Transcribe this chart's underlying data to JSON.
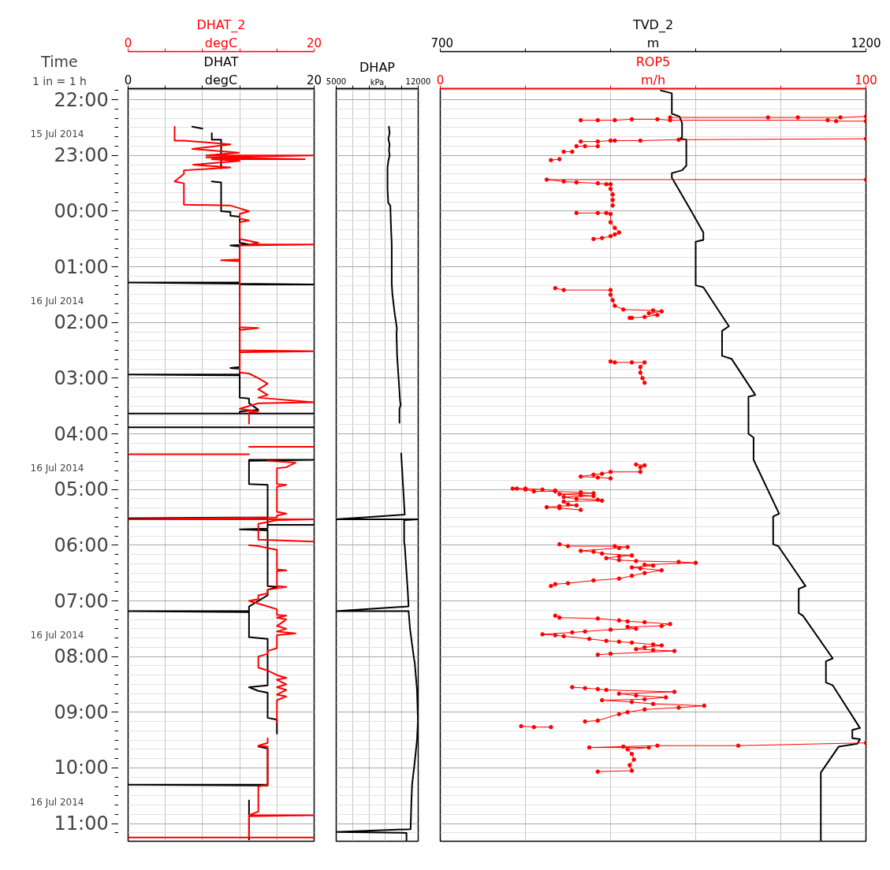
{
  "chart_data": [
    {
      "type": "line",
      "orientation": "horizontal",
      "annotations": [
        "Time",
        "1 in = 1 h"
      ],
      "xlim": [
        0,
        20
      ],
      "xticks": [
        0,
        {
          "value": 4,
          "label": null
        },
        {
          "value": 8,
          "label": null
        },
        {
          "value": 12,
          "label": null
        },
        {
          "value": 16,
          "label": null
        },
        20
      ],
      "xlabel": "degC",
      "x2lim": [
        0,
        20
      ],
      "x2ticks": [
        0,
        {
          "value": 4,
          "label": null
        },
        {
          "value": 8,
          "label": null
        },
        {
          "value": 12,
          "label": null
        },
        {
          "value": 16,
          "label": null
        },
        20
      ],
      "x2label": "degC",
      "ylim": [
        "2014-07-16T11:19",
        "2014-07-15T21:48"
      ],
      "yticks": [
        {
          "value": "2014-07-15T22:00",
          "label": "22:00"
        },
        {
          "value": "2014-07-15T23:00",
          "label": "23:00"
        },
        {
          "value": "2014-07-16T00:00",
          "label": "00:00"
        },
        {
          "value": "2014-07-16T01:00",
          "label": "01:00"
        },
        {
          "value": "2014-07-16T02:00",
          "label": "02:00"
        },
        {
          "value": "2014-07-16T03:00",
          "label": "03:00"
        },
        {
          "value": "2014-07-16T04:00",
          "label": "04:00"
        },
        {
          "value": "2014-07-16T05:00",
          "label": "05:00"
        },
        {
          "value": "2014-07-16T06:00",
          "label": "06:00"
        },
        {
          "value": "2014-07-16T07:00",
          "label": "07:00"
        },
        {
          "value": "2014-07-16T08:00",
          "label": "08:00"
        },
        {
          "value": "2014-07-16T09:00",
          "label": "09:00"
        },
        {
          "value": "2014-07-16T10:00",
          "label": "10:00"
        },
        {
          "value": "2014-07-16T11:00",
          "label": "11:00"
        }
      ],
      "y2lim": [
        "2014-07-16T11:19",
        "2014-07-15T21:48"
      ],
      "y2ticks": [
        {
          "value": "2014-07-15T22:37",
          "label": "15 Jul 2014"
        },
        {
          "value": "2014-07-16T01:37",
          "label": "16 Jul 2014"
        },
        {
          "value": "2014-07-16T04:37",
          "label": "16 Jul 2014"
        },
        {
          "value": "2014-07-16T07:37",
          "label": "16 Jul 2014"
        },
        {
          "value": "2014-07-16T10:37",
          "label": "16 Jul 2014"
        }
      ],
      "grid": true,
      "series": [
        {
          "name": "DHAT",
          "color": "#000000",
          "marker": "none",
          "values": [
            6.9,
            8,
            null,
            9,
            9,
            10,
            10,
            null,
            9,
            10,
            10,
            11,
            11,
            12,
            12,
            13,
            11,
            12,
            12,
            0,
            20,
            12,
            12,
            11,
            12,
            12,
            0,
            12,
            12,
            13,
            13,
            14,
            12,
            12,
            0,
            20,
            null,
            0,
            20,
            null,
            13,
            20,
            13,
            13,
            15,
            15,
            0,
            15,
            15,
            20,
            15,
            15,
            12,
            15,
            15,
            16,
            15,
            15,
            13,
            13,
            0,
            13,
            13,
            15,
            15,
            13,
            14,
            15,
            15,
            16,
            16,
            null,
            14,
            15,
            15,
            0,
            15,
            null,
            13,
            13
          ],
          "x": [
            "2014-07-15T22:29",
            "2014-07-15T22:31",
            null,
            "2014-07-15T22:36",
            "2014-07-15T22:43",
            "2014-07-15T22:43",
            "2014-07-15T23:14",
            null,
            "2014-07-15T23:28",
            "2014-07-15T23:29",
            "2014-07-16T00:00",
            "2014-07-16T00:01",
            "2014-07-16T00:05",
            "2014-07-16T00:06",
            "2014-07-16T00:34",
            "2014-07-16T00:36",
            "2014-07-16T00:37",
            "2014-07-16T00:38",
            "2014-07-16T01:17",
            "2014-07-16T01:17",
            "2014-07-16T01:19",
            "2014-07-16T01:19",
            "2014-07-16T02:48",
            "2014-07-16T02:49",
            "2014-07-16T02:50",
            "2014-07-16T02:56",
            "2014-07-16T02:56",
            "2014-07-16T02:57",
            "2014-07-16T03:21",
            "2014-07-16T03:22",
            "2014-07-16T03:27",
            "2014-07-16T03:34",
            "2014-07-16T03:36",
            "2014-07-16T03:38",
            "2014-07-16T03:38",
            "2014-07-16T03:38",
            null,
            "2014-07-16T03:53",
            "2014-07-16T03:53",
            null,
            "2014-07-16T04:28",
            "2014-07-16T04:28",
            "2014-07-16T04:29",
            "2014-07-16T04:54",
            "2014-07-16T04:55",
            "2014-07-16T05:30",
            "2014-07-16T05:31",
            "2014-07-16T05:31",
            "2014-07-16T05:38",
            "2014-07-16T05:38",
            "2014-07-16T05:38",
            "2014-07-16T05:42",
            "2014-07-16T05:43",
            "2014-07-16T05:44",
            "2014-07-16T06:44",
            "2014-07-16T06:45",
            "2014-07-16T06:48",
            "2014-07-16T06:54",
            "2014-07-16T07:06",
            "2014-07-16T07:11",
            "2014-07-16T07:11",
            "2014-07-16T07:12",
            "2014-07-16T07:39",
            "2014-07-16T07:41",
            "2014-07-16T08:31",
            "2014-07-16T08:33",
            "2014-07-16T08:37",
            "2014-07-16T08:39",
            "2014-07-16T09:06",
            "2014-07-16T09:08",
            "2014-07-16T09:23",
            null,
            "2014-07-16T09:37",
            "2014-07-16T09:39",
            "2014-07-16T10:18",
            "2014-07-16T10:18",
            "2014-07-16T10:19",
            null,
            "2014-07-16T10:35",
            "2014-07-16T11:17"
          ]
        },
        {
          "name": "DHAT_2",
          "color": "#ff0000",
          "axis": "x2",
          "marker": "none",
          "values": [
            5,
            5,
            6,
            11,
            6.9,
            11.9,
            8.4,
            20,
            8.4,
            19,
            9,
            12,
            7,
            11,
            6,
            6,
            5,
            6,
            6,
            11,
            12,
            13,
            12,
            12,
            13,
            12,
            12,
            14,
            13,
            20,
            12,
            12,
            10,
            12,
            12,
            14,
            12,
            12,
            20,
            12,
            12,
            13,
            14,
            15,
            14,
            15,
            14,
            20,
            14,
            12,
            14,
            13,
            13,
            null,
            13,
            20,
            null,
            0,
            13,
            null,
            15,
            18,
            17,
            16,
            16,
            17,
            16,
            16,
            17,
            16,
            16,
            0,
            20,
            16,
            14,
            14,
            20,
            null,
            13,
            14,
            16,
            16,
            17,
            16,
            16,
            17,
            15,
            15,
            14,
            14,
            13,
            14,
            15,
            16,
            16,
            17,
            16,
            17,
            16,
            17,
            16,
            18,
            16,
            16,
            15,
            15,
            14,
            14,
            15,
            16,
            17,
            16,
            17,
            16,
            17,
            16,
            17,
            16,
            16,
            null,
            15,
            15,
            14,
            15,
            15,
            14,
            14,
            13,
            20,
            13,
            13,
            0,
            20
          ],
          "x": [
            "2014-07-15T22:29",
            "2014-07-15T22:44",
            "2014-07-15T22:44",
            "2014-07-15T22:48",
            "2014-07-15T22:53",
            "2014-07-15T22:57",
            "2014-07-15T23:00",
            "2014-07-15T23:00",
            "2014-07-15T23:02",
            "2014-07-15T23:04",
            "2014-07-15T23:04",
            "2014-07-15T23:06",
            "2014-07-15T23:10",
            "2014-07-15T23:13",
            "2014-07-15T23:16",
            "2014-07-15T23:20",
            "2014-07-15T23:28",
            "2014-07-15T23:30",
            "2014-07-15T23:53",
            "2014-07-15T23:54",
            "2014-07-15T23:57",
            "2014-07-16T00:00",
            "2014-07-16T00:03",
            "2014-07-16T00:08",
            "2014-07-16T00:10",
            "2014-07-16T00:12",
            "2014-07-16T00:30",
            "2014-07-16T00:34",
            "2014-07-16T00:36",
            "2014-07-16T00:36",
            "2014-07-16T00:37",
            "2014-07-16T00:52",
            "2014-07-16T00:53",
            "2014-07-16T00:54",
            "2014-07-16T02:05",
            "2014-07-16T02:06",
            "2014-07-16T02:08",
            "2014-07-16T02:30",
            "2014-07-16T02:31",
            "2014-07-16T02:32",
            "2014-07-16T02:54",
            "2014-07-16T02:55",
            "2014-07-16T03:00",
            "2014-07-16T03:06",
            "2014-07-16T03:12",
            "2014-07-16T03:18",
            "2014-07-16T03:21",
            "2014-07-16T03:26",
            "2014-07-16T03:27",
            "2014-07-16T03:33",
            "2014-07-16T03:36",
            "2014-07-16T03:37",
            "2014-07-16T03:49",
            null,
            "2014-07-16T04:14",
            "2014-07-16T04:14",
            null,
            "2014-07-16T04:22",
            "2014-07-16T04:22",
            null,
            "2014-07-16T04:29",
            "2014-07-16T04:31",
            "2014-07-16T04:36",
            "2014-07-16T04:37",
            "2014-07-16T04:54",
            "2014-07-16T04:55",
            "2014-07-16T04:57",
            "2014-07-16T05:24",
            "2014-07-16T05:26",
            "2014-07-16T05:28",
            "2014-07-16T05:30",
            "2014-07-16T05:32",
            "2014-07-16T05:32",
            "2014-07-16T05:33",
            "2014-07-16T05:37",
            "2014-07-16T05:54",
            "2014-07-16T05:56",
            null,
            "2014-07-16T06:00",
            "2014-07-16T06:01",
            "2014-07-16T06:05",
            "2014-07-16T06:26",
            "2014-07-16T06:27",
            "2014-07-16T06:28",
            "2014-07-16T06:44",
            "2014-07-16T06:45",
            "2014-07-16T06:48",
            "2014-07-16T06:52",
            "2014-07-16T06:54",
            "2014-07-16T06:58",
            "2014-07-16T07:00",
            "2014-07-16T07:03",
            "2014-07-16T07:06",
            "2014-07-16T07:09",
            "2014-07-16T07:15",
            "2014-07-16T07:16",
            "2014-07-16T07:18",
            "2014-07-16T07:20",
            "2014-07-16T07:27",
            "2014-07-16T07:30",
            "2014-07-16T07:33",
            "2014-07-16T07:35",
            "2014-07-16T07:37",
            "2014-07-16T07:51",
            "2014-07-16T07:54",
            "2014-07-16T07:57",
            "2014-07-16T08:00",
            "2014-07-16T08:12",
            "2014-07-16T08:15",
            "2014-07-16T08:20",
            "2014-07-16T08:23",
            "2014-07-16T08:25",
            "2014-07-16T08:30",
            "2014-07-16T08:33",
            "2014-07-16T08:36",
            "2014-07-16T08:41",
            "2014-07-16T08:43",
            "2014-07-16T08:47",
            "2014-07-16T09:11",
            null,
            "2014-07-16T09:28",
            "2014-07-16T09:33",
            "2014-07-16T09:36",
            "2014-07-16T09:37",
            "2014-07-16T10:18",
            "2014-07-16T10:20",
            "2014-07-16T10:47",
            "2014-07-16T10:51",
            "2014-07-16T10:51",
            "2014-07-16T10:52",
            "2014-07-16T11:15",
            "2014-07-16T11:15",
            "2014-07-16T11:15"
          ]
        }
      ]
    },
    {
      "type": "line",
      "tick_labels": "x",
      "xlim": [
        5000,
        12000
      ],
      "xticks": [
        5000,
        {
          "value": 6400,
          "label": null
        },
        {
          "value": 7800,
          "label": null
        },
        {
          "value": 9200,
          "label": null
        },
        {
          "value": 10600,
          "label": null
        },
        12000
      ],
      "xlabel": "kPa",
      "orientation": "horizontal",
      "ylim": [
        "2014-07-16T11:19",
        "2014-07-15T21:48"
      ],
      "yticks": [
        "2014-07-15T22:00",
        "2014-07-15T23:00",
        "2014-07-16T00:00",
        "2014-07-16T01:00",
        "2014-07-16T02:00",
        "2014-07-16T03:00",
        "2014-07-16T04:00",
        "2014-07-16T05:00",
        "2014-07-16T06:00",
        "2014-07-16T07:00",
        "2014-07-16T08:00",
        "2014-07-16T09:00",
        "2014-07-16T10:00",
        "2014-07-16T11:00"
      ],
      "grid": true,
      "series": [
        {
          "name": "DHAP",
          "color": "#000000",
          "marker": "none",
          "values": [
            9500,
            9560,
            9450,
            9560,
            9500,
            9560,
            9450,
            9380,
            9380,
            9440,
            9620,
            9680,
            9740,
            9740,
            9800,
            10000,
            10180,
            10150,
            10200,
            10450,
            10500,
            10400,
            10400,
            null,
            10550,
            10600,
            10850,
            5000,
            12000,
            10800,
            10800,
            10850,
            11100,
            11180,
            5000,
            11180,
            11300,
            11650,
            11700,
            11900,
            11980,
            11900,
            11700,
            11480,
            11420,
            11350,
            5000,
            11000,
            11000
          ],
          "x": [
            "2014-07-15T22:29",
            "2014-07-15T22:36",
            "2014-07-15T22:42",
            "2014-07-15T22:48",
            "2014-07-15T22:54",
            "2014-07-15T23:00",
            "2014-07-15T23:06",
            "2014-07-15T23:13",
            "2014-07-15T23:36",
            "2014-07-15T23:51",
            "2014-07-15T23:54",
            "2014-07-16T00:18",
            "2014-07-16T00:36",
            "2014-07-16T01:18",
            "2014-07-16T01:30",
            "2014-07-16T01:51",
            "2014-07-16T02:06",
            "2014-07-16T02:12",
            "2014-07-16T02:36",
            "2014-07-16T03:24",
            "2014-07-16T03:29",
            "2014-07-16T03:33",
            "2014-07-16T03:48",
            null,
            "2014-07-16T04:21",
            "2014-07-16T04:33",
            "2014-07-16T05:27",
            "2014-07-16T05:32",
            "2014-07-16T05:32",
            "2014-07-16T05:33",
            "2014-07-16T05:57",
            "2014-07-16T06:00",
            "2014-07-16T06:48",
            "2014-07-16T07:06",
            "2014-07-16T07:11",
            "2014-07-16T07:11",
            "2014-07-16T07:30",
            "2014-07-16T08:03",
            "2014-07-16T08:06",
            "2014-07-16T08:36",
            "2014-07-16T09:09",
            "2014-07-16T09:30",
            "2014-07-16T09:54",
            "2014-07-16T10:18",
            "2014-07-16T10:36",
            "2014-07-16T11:06",
            "2014-07-16T11:09",
            "2014-07-16T11:10",
            "2014-07-16T11:18"
          ]
        }
      ]
    },
    {
      "type": "line",
      "tick_labels": "x",
      "xlim": [
        0,
        100
      ],
      "xticks": [
        0,
        {
          "value": 20,
          "label": null
        },
        {
          "value": 40,
          "label": null
        },
        {
          "value": 60,
          "label": null
        },
        {
          "value": 80,
          "label": null
        },
        100
      ],
      "xlabel": "m/h",
      "x2lim": [
        700,
        1200
      ],
      "x2ticks": [
        700,
        {
          "value": 800,
          "label": null
        },
        {
          "value": 900,
          "label": null
        },
        {
          "value": 1000,
          "label": null
        },
        {
          "value": 1100,
          "label": null
        },
        1200
      ],
      "x2label": "m",
      "orientation": "horizontal",
      "ylim": [
        "2014-07-16T11:19",
        "2014-07-15T21:48"
      ],
      "yticks": [
        "2014-07-15T22:00",
        "2014-07-15T23:00",
        "2014-07-16T00:00",
        "2014-07-16T01:00",
        "2014-07-16T02:00",
        "2014-07-16T03:00",
        "2014-07-16T04:00",
        "2014-07-16T05:00",
        "2014-07-16T06:00",
        "2014-07-16T07:00",
        "2014-07-16T08:00",
        "2014-07-16T09:00",
        "2014-07-16T10:00",
        "2014-07-16T11:00"
      ],
      "grid": true,
      "series": [
        {
          "name": "TVD_2",
          "color": "#000000",
          "axis": "x2",
          "marker": "none",
          "values": [
            959,
            972,
            972,
            981,
            984,
            984,
            982,
            989,
            989,
            984,
            972,
            972,
            993,
            1009,
            1009,
            1000,
            1000,
            1009,
            1039,
            1031,
            1031,
            1042,
            1070,
            1062,
            1062,
            1068,
            1068,
            1068,
            1098,
            1091,
            1091,
            1097,
            1129,
            1121,
            1121,
            1126,
            1161,
            1153,
            1153,
            1161,
            1193,
            1184,
            1184,
            1193,
            1190,
            1168,
            1147,
            1147
          ],
          "x": [
            "2014-07-15T21:50",
            "2014-07-15T21:53",
            "2014-07-15T22:15",
            "2014-07-15T22:18",
            "2014-07-15T22:25",
            "2014-07-15T22:40",
            "2014-07-15T22:42",
            "2014-07-15T22:43",
            "2014-07-15T23:11",
            "2014-07-15T23:16",
            "2014-07-15T23:19",
            "2014-07-15T23:24",
            "2014-07-15T23:57",
            "2014-07-16T00:23",
            "2014-07-16T00:31",
            "2014-07-16T00:33",
            "2014-07-16T01:20",
            "2014-07-16T01:22",
            "2014-07-16T02:04",
            "2014-07-16T02:09",
            "2014-07-16T02:36",
            "2014-07-16T02:39",
            "2014-07-16T03:18",
            "2014-07-16T03:20",
            "2014-07-16T04:00",
            "2014-07-16T04:04",
            "2014-07-16T04:27",
            "2014-07-16T04:28",
            "2014-07-16T05:26",
            "2014-07-16T05:29",
            "2014-07-16T05:59",
            "2014-07-16T06:01",
            "2014-07-16T06:44",
            "2014-07-16T06:47",
            "2014-07-16T07:13",
            "2014-07-16T07:16",
            "2014-07-16T08:02",
            "2014-07-16T08:05",
            "2014-07-16T08:28",
            "2014-07-16T08:31",
            "2014-07-16T09:17",
            "2014-07-16T09:19",
            "2014-07-16T09:28",
            "2014-07-16T09:29",
            "2014-07-16T09:34",
            "2014-07-16T09:37",
            "2014-07-16T10:05",
            "2014-07-16T11:18"
          ]
        },
        {
          "name": "ROP5",
          "color": "#ff0000",
          "marker": "circle",
          "values": [
            100,
            94,
            84,
            77,
            54,
            null,
            33,
            37,
            41,
            45,
            51,
            54,
            91,
            93,
            100,
            null,
            100,
            56,
            47,
            41,
            40,
            37,
            33,
            null,
            37,
            34,
            32,
            null,
            31,
            29,
            null,
            28,
            26,
            null,
            100,
            25,
            29,
            32,
            37,
            39,
            40,
            40,
            40.5,
            40.5,
            40.5,
            null,
            32,
            37,
            39,
            40,
            40,
            41,
            42,
            41,
            40,
            38,
            36,
            null,
            27,
            29,
            40,
            40,
            40.5,
            41,
            43,
            50,
            52,
            49,
            51,
            48,
            45,
            44.5,
            null,
            40,
            41,
            45,
            48,
            47,
            47,
            47.5,
            48,
            null,
            46,
            48,
            47,
            47,
            40,
            38,
            36,
            33,
            37,
            40,
            null,
            27,
            24,
            20,
            18,
            17,
            20,
            22,
            27,
            33,
            36,
            28,
            33,
            36,
            29,
            32,
            37,
            38,
            29,
            30,
            32,
            28,
            25,
            28,
            33,
            null,
            28,
            30,
            41,
            44,
            42,
            33,
            36,
            38,
            45,
            42,
            39,
            42,
            46,
            56,
            60,
            48,
            50,
            45,
            47,
            52,
            48,
            45,
            42,
            36,
            30,
            27,
            26,
            null,
            27,
            28,
            37,
            42,
            44,
            48,
            54,
            52,
            44,
            46,
            40,
            34,
            31,
            24,
            27,
            29,
            35,
            39,
            42,
            45,
            50,
            52,
            48,
            46,
            50,
            55,
            40,
            37,
            null,
            31,
            34,
            37,
            39,
            55,
            42,
            46,
            53,
            48,
            38,
            45,
            50,
            62,
            56,
            48,
            44,
            42,
            37,
            34,
            null,
            19,
            22,
            26,
            null,
            100,
            70,
            51,
            43,
            35,
            49,
            44,
            45,
            45.5,
            44.5,
            45,
            37
          ],
          "x": [
            "2014-07-15T22:18",
            "2014-07-15T22:19",
            "2014-07-15T22:19",
            "2014-07-15T22:19",
            "2014-07-15T22:19",
            null,
            "2014-07-15T22:22",
            "2014-07-15T22:22",
            "2014-07-15T22:22",
            "2014-07-15T22:21",
            "2014-07-15T22:21",
            "2014-07-15T22:22",
            "2014-07-15T22:22",
            "2014-07-15T22:23",
            "2014-07-15T22:23",
            null,
            "2014-07-15T22:42",
            "2014-07-15T22:43",
            "2014-07-15T22:44",
            "2014-07-15T22:44",
            "2014-07-15T22:44",
            "2014-07-15T22:45",
            "2014-07-15T22:45",
            null,
            "2014-07-15T22:50",
            "2014-07-15T22:50",
            "2014-07-15T22:50",
            null,
            "2014-07-15T22:56",
            "2014-07-15T22:56",
            null,
            "2014-07-15T23:04",
            "2014-07-15T23:05",
            null,
            "2014-07-15T23:26",
            "2014-07-15T23:26",
            "2014-07-15T23:28",
            "2014-07-15T23:29",
            "2014-07-15T23:30",
            "2014-07-15T23:31",
            "2014-07-15T23:31",
            "2014-07-15T23:36",
            "2014-07-15T23:42",
            "2014-07-15T23:48",
            "2014-07-15T23:54",
            null,
            "2014-07-16T00:02",
            "2014-07-16T00:02",
            "2014-07-16T00:02",
            "2014-07-16T00:03",
            "2014-07-16T00:12",
            "2014-07-16T00:18",
            "2014-07-16T00:23",
            "2014-07-16T00:25",
            "2014-07-16T00:27",
            "2014-07-16T00:29",
            "2014-07-16T00:30",
            null,
            "2014-07-16T01:23",
            "2014-07-16T01:25",
            "2014-07-16T01:25",
            "2014-07-16T01:30",
            "2014-07-16T01:36",
            "2014-07-16T01:42",
            "2014-07-16T01:46",
            "2014-07-16T01:47",
            "2014-07-16T01:48",
            "2014-07-16T01:50",
            "2014-07-16T01:52",
            "2014-07-16T01:54",
            "2014-07-16T01:55",
            "2014-07-16T01:55",
            null,
            "2014-07-16T02:42",
            "2014-07-16T02:43",
            "2014-07-16T02:43",
            "2014-07-16T02:43",
            "2014-07-16T02:48",
            "2014-07-16T02:54",
            "2014-07-16T03:00",
            "2014-07-16T03:05",
            null,
            "2014-07-16T04:33",
            "2014-07-16T04:34",
            "2014-07-16T04:36",
            "2014-07-16T04:41",
            "2014-07-16T04:41",
            "2014-07-16T04:43",
            "2014-07-16T04:44",
            "2014-07-16T04:46",
            "2014-07-16T04:47",
            "2014-07-16T04:48",
            null,
            "2014-07-16T05:01",
            "2014-07-16T05:00",
            "2014-07-16T04:59",
            "2014-07-16T04:59",
            "2014-07-16T04:59",
            "2014-07-16T05:00",
            "2014-07-16T05:02",
            "2014-07-16T05:02",
            "2014-07-16T05:03",
            "2014-07-16T05:04",
            "2014-07-16T05:05",
            "2014-07-16T05:06",
            "2014-07-16T05:07",
            "2014-07-16T05:08",
            "2014-07-16T05:10",
            "2014-07-16T05:11",
            "2014-07-16T05:12",
            "2014-07-16T05:13",
            "2014-07-16T05:16",
            "2014-07-16T05:17",
            "2014-07-16T05:18",
            "2014-07-16T05:19",
            "2014-07-16T05:20",
            "2014-07-16T05:22",
            null,
            "2014-07-16T05:59",
            "2014-07-16T06:01",
            "2014-07-16T06:01",
            "2014-07-16T06:02",
            "2014-07-16T06:03",
            "2014-07-16T06:06",
            "2014-07-16T06:07",
            "2014-07-16T06:09",
            "2014-07-16T06:11",
            "2014-07-16T06:12",
            "2014-07-16T06:14",
            "2014-07-16T06:16",
            "2014-07-16T06:17",
            "2014-07-16T06:18",
            "2014-07-16T06:19",
            "2014-07-16T06:21",
            "2014-07-16T06:22",
            "2014-07-16T06:24",
            "2014-07-16T06:25",
            "2014-07-16T06:27",
            "2014-07-16T06:30",
            "2014-07-16T06:33",
            "2014-07-16T06:36",
            "2014-07-16T06:38",
            "2014-07-16T06:41",
            "2014-07-16T06:42",
            "2014-07-16T06:44",
            null,
            "2014-07-16T07:16",
            "2014-07-16T07:18",
            "2014-07-16T07:19",
            "2014-07-16T07:21",
            "2014-07-16T07:22",
            "2014-07-16T07:23",
            "2014-07-16T07:25",
            "2014-07-16T07:27",
            "2014-07-16T07:28",
            "2014-07-16T07:30",
            "2014-07-16T07:31",
            "2014-07-16T07:33",
            "2014-07-16T07:34",
            "2014-07-16T07:36",
            "2014-07-16T07:37",
            "2014-07-16T07:38",
            "2014-07-16T07:41",
            "2014-07-16T07:43",
            "2014-07-16T07:44",
            "2014-07-16T07:45",
            "2014-07-16T07:47",
            "2014-07-16T07:48",
            "2014-07-16T07:50",
            "2014-07-16T07:52",
            "2014-07-16T07:53",
            "2014-07-16T07:54",
            "2014-07-16T07:57",
            "2014-07-16T07:58",
            null,
            "2014-07-16T08:33",
            "2014-07-16T08:34",
            "2014-07-16T08:35",
            "2014-07-16T08:36",
            "2014-07-16T08:38",
            "2014-07-16T08:40",
            "2014-07-16T08:42",
            "2014-07-16T08:44",
            "2014-07-16T08:46",
            "2014-07-16T08:47",
            "2014-07-16T08:49",
            "2014-07-16T08:51",
            "2014-07-16T08:53",
            "2014-07-16T08:55",
            "2014-07-16T08:57",
            "2014-07-16T09:00",
            "2014-07-16T09:02",
            "2014-07-16T09:09",
            "2014-07-16T09:10",
            null,
            "2014-07-16T09:15",
            "2014-07-16T09:16",
            "2014-07-16T09:16",
            null,
            "2014-07-16T09:33",
            "2014-07-16T09:36",
            "2014-07-16T09:36",
            "2014-07-16T09:37",
            "2014-07-16T09:38",
            "2014-07-16T09:38",
            "2014-07-16T09:40",
            "2014-07-16T09:45",
            "2014-07-16T09:51",
            "2014-07-16T09:57",
            "2014-07-16T10:03",
            "2014-07-16T10:04"
          ]
        }
      ]
    }
  ]
}
